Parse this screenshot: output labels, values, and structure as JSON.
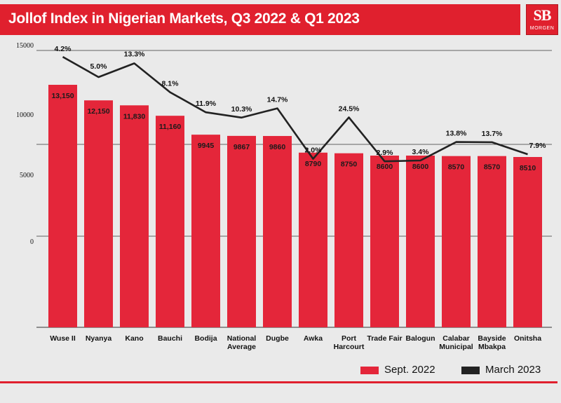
{
  "header": {
    "title": "Jollof Index in Nigerian Markets, Q3 2022 & Q1 2023",
    "logo_mark": "SB",
    "logo_word": "MORGEN"
  },
  "colors": {
    "title_bar": "#e0202e",
    "bar": "#e4263a",
    "line": "#222222",
    "background": "#eaeaea"
  },
  "legend": {
    "items": [
      {
        "label": "Sept. 2022",
        "color": "#e4263a"
      },
      {
        "label": "March 2023",
        "color": "#222222"
      }
    ],
    "placement": "bottom-right"
  },
  "chart_data": {
    "type": "bar",
    "title": "Jollof Index in Nigerian Markets, Q3 2022 & Q1 2023",
    "categories": [
      [
        "Wuse II"
      ],
      [
        "Nyanya"
      ],
      [
        "Kano"
      ],
      [
        "Bauchi"
      ],
      [
        "Bodija"
      ],
      [
        "National",
        "Average"
      ],
      [
        "Dugbe"
      ],
      [
        "Awka"
      ],
      [
        "Port",
        "Harcourt"
      ],
      [
        "Trade Fair"
      ],
      [
        "Balogun"
      ],
      [
        "Calabar",
        "Municipal"
      ],
      [
        "Bayside",
        "Mbakpa"
      ],
      [
        "Onitsha"
      ]
    ],
    "y_tick_labels": [
      "15000",
      "10000",
      "5000",
      "0"
    ],
    "series": [
      {
        "name": "Sept. 2022",
        "type": "bar",
        "values": [
          13150,
          12150,
          11830,
          11160,
          9945,
          9867,
          9860,
          8790,
          8750,
          8600,
          8600,
          8570,
          8570,
          8510
        ],
        "labels": [
          "13,150",
          "12,150",
          "11,830",
          "11,160",
          "9945",
          "9867",
          "9860",
          "8790",
          "8750",
          "8600",
          "8600",
          "8570",
          "8570",
          "8510"
        ]
      },
      {
        "name": "March 2023",
        "type": "line",
        "values": [
          13700,
          12760,
          13400,
          12060,
          11130,
          10880,
          11310,
          8970,
          10890,
          8850,
          8890,
          9750,
          9740,
          9180
        ],
        "labels": [
          "4.2%",
          "5.0%",
          "13.3%",
          "8.1%",
          "11.9%",
          "10.3%",
          "14.7%",
          "2.0%",
          "24.5%",
          "2.9%",
          "3.4%",
          "13.8%",
          "13.7%",
          "7.9%"
        ]
      }
    ]
  }
}
